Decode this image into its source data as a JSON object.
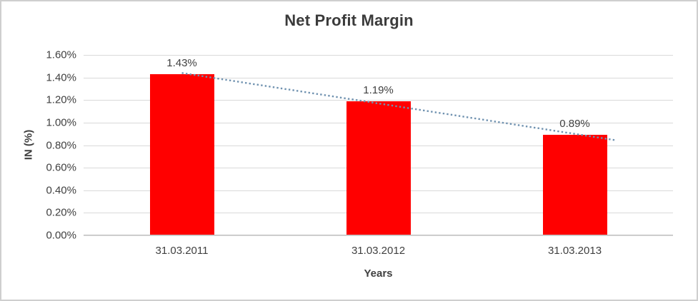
{
  "chart": {
    "title": "Net Profit Margin",
    "y_axis_title": "IN (%)",
    "x_axis_title": "Years"
  },
  "chart_data": {
    "type": "bar",
    "title": "Net Profit Margin",
    "xlabel": "Years",
    "ylabel": "IN (%)",
    "categories": [
      "31.03.2011",
      "31.03.2012",
      "31.03.2013"
    ],
    "values": [
      1.43,
      1.19,
      0.89
    ],
    "value_labels": [
      "1.43%",
      "1.19%",
      "0.89%"
    ],
    "unit": "percent",
    "ylim": [
      0,
      1.6
    ],
    "ytick_step": 0.2,
    "ytick_labels": [
      "0.00%",
      "0.20%",
      "0.40%",
      "0.60%",
      "0.80%",
      "1.00%",
      "1.20%",
      "1.40%",
      "1.60%"
    ],
    "grid": true,
    "legend": "none",
    "bar_color": "#FF0000",
    "text_color": "#404040",
    "gridline_color": "#D9D9D9",
    "trendline": {
      "type": "linear",
      "style": "dotted",
      "color": "#7092B0",
      "fitted_values": [
        1.44,
        1.17,
        0.9
      ]
    }
  }
}
